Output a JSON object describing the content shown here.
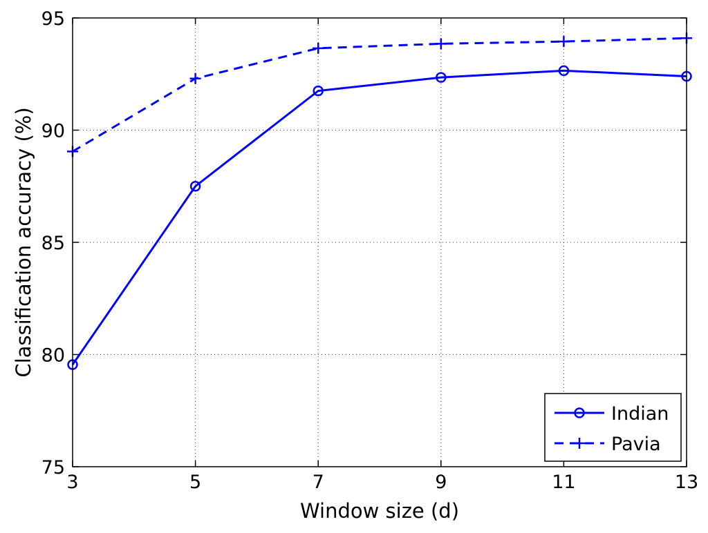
{
  "chart_data": {
    "type": "line",
    "xlabel": "Window size (d)",
    "ylabel": "Classification accuracy (%)",
    "x": [
      3,
      5,
      7,
      9,
      11,
      13
    ],
    "xticks": [
      "3",
      "5",
      "7",
      "9",
      "11",
      "13"
    ],
    "yticks": [
      "75",
      "80",
      "85",
      "90",
      "95"
    ],
    "xlim": [
      3,
      13
    ],
    "ylim": [
      75,
      95
    ],
    "grid": true,
    "legend_position": "bottom-right",
    "series": [
      {
        "name": "Indian",
        "values": [
          79.55,
          87.5,
          91.75,
          92.35,
          92.65,
          92.4
        ],
        "color": "#0000ff",
        "line_style": "solid",
        "marker": "circle"
      },
      {
        "name": "Pavia",
        "values": [
          89.05,
          92.3,
          93.65,
          93.85,
          93.95,
          94.1
        ],
        "color": "#0000ff",
        "line_style": "dashed",
        "marker": "plus"
      }
    ]
  }
}
